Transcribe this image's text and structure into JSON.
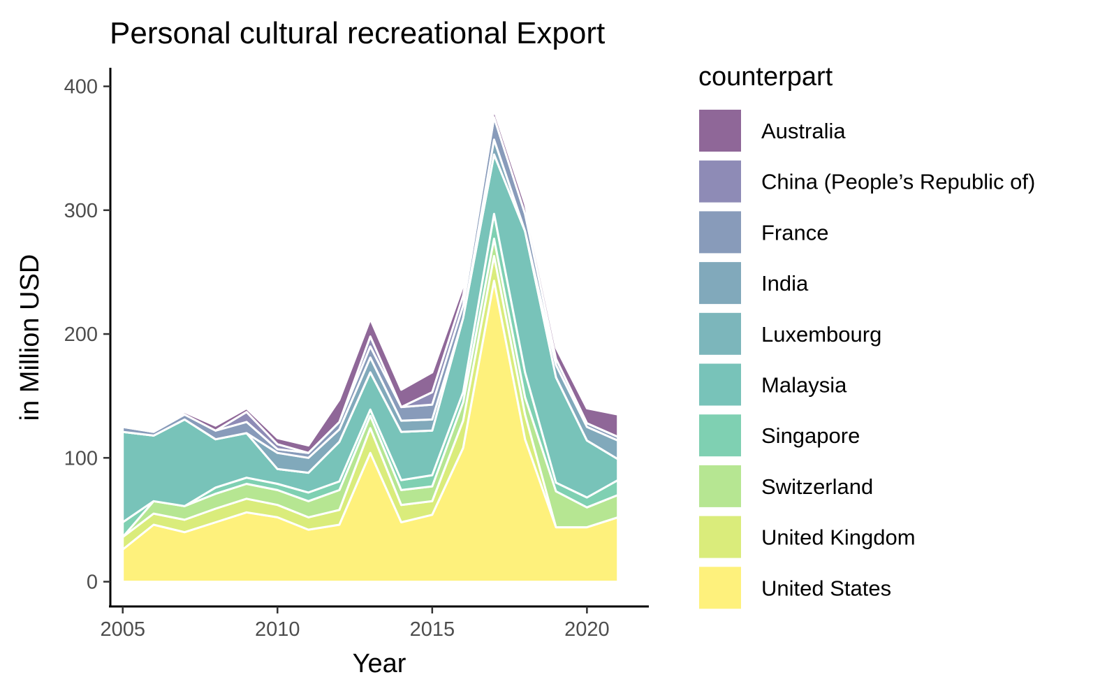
{
  "chart_data": {
    "type": "area",
    "stacked": true,
    "title": "Personal cultural recreational Export",
    "xlabel": "Year",
    "ylabel": "in Million USD",
    "xlim": [
      2004.6,
      2022
    ],
    "ylim": [
      -20,
      415
    ],
    "x_ticks": [
      2005,
      2010,
      2015,
      2020
    ],
    "y_ticks": [
      0,
      100,
      200,
      300,
      400
    ],
    "grid": false,
    "legend": {
      "title": "counterpart",
      "position": "right"
    },
    "x": [
      2005,
      2006,
      2007,
      2008,
      2009,
      2010,
      2011,
      2012,
      2013,
      2014,
      2015,
      2016,
      2017,
      2018,
      2019,
      2020,
      2021
    ],
    "series": [
      {
        "name": "United States",
        "color": "#FDE725",
        "values": [
          26,
          46,
          40,
          48,
          56,
          52,
          42,
          46,
          104,
          48,
          54,
          108,
          243,
          115,
          44,
          44,
          52
        ]
      },
      {
        "name": "United Kingdom",
        "color": "#C2DF23",
        "values": [
          10,
          9,
          10,
          11,
          11,
          10,
          10,
          12,
          20,
          14,
          11,
          22,
          20,
          20,
          0,
          0,
          0
        ]
      },
      {
        "name": "Switzerland",
        "color": "#86D549",
        "values": [
          0,
          10,
          11,
          12,
          12,
          12,
          13,
          16,
          10,
          12,
          12,
          15,
          14,
          14,
          29,
          16,
          18
        ]
      },
      {
        "name": "Singapore",
        "color": "#2AB07F",
        "values": [
          12,
          0,
          0,
          5,
          5,
          5,
          7,
          7,
          5,
          8,
          9,
          8,
          20,
          20,
          7,
          8,
          12
        ]
      },
      {
        "name": "Malaysia",
        "color": "#1E9B8A",
        "values": [
          73,
          53,
          70,
          39,
          36,
          12,
          16,
          32,
          30,
          39,
          36,
          60,
          48,
          114,
          85,
          46,
          17
        ]
      },
      {
        "name": "Luxembourg",
        "color": "#25858E",
        "values": [
          0,
          0,
          0,
          0,
          0,
          0,
          0,
          0,
          0,
          0,
          0,
          0,
          0,
          0,
          0,
          0,
          0
        ]
      },
      {
        "name": "India",
        "color": "#2D708E",
        "values": [
          0,
          0,
          0,
          0,
          0,
          13,
          12,
          10,
          12,
          9,
          9,
          0,
          12,
          0,
          10,
          11,
          15
        ]
      },
      {
        "name": "France",
        "color": "#38598C",
        "values": [
          4,
          3,
          4,
          7,
          9,
          3,
          4,
          6,
          9,
          11,
          12,
          10,
          18,
          14,
          5,
          3,
          3
        ]
      },
      {
        "name": "China (People’s Republic of)",
        "color": "#433E85",
        "values": [
          0,
          0,
          0,
          0,
          8,
          4,
          0,
          0,
          8,
          0,
          10,
          8,
          0,
          0,
          0,
          0,
          0
        ]
      },
      {
        "name": "Australia",
        "color": "#440154",
        "values": [
          0,
          1,
          2,
          4,
          3,
          5,
          6,
          18,
          14,
          14,
          16,
          8,
          6,
          8,
          9,
          12,
          18
        ]
      }
    ]
  }
}
